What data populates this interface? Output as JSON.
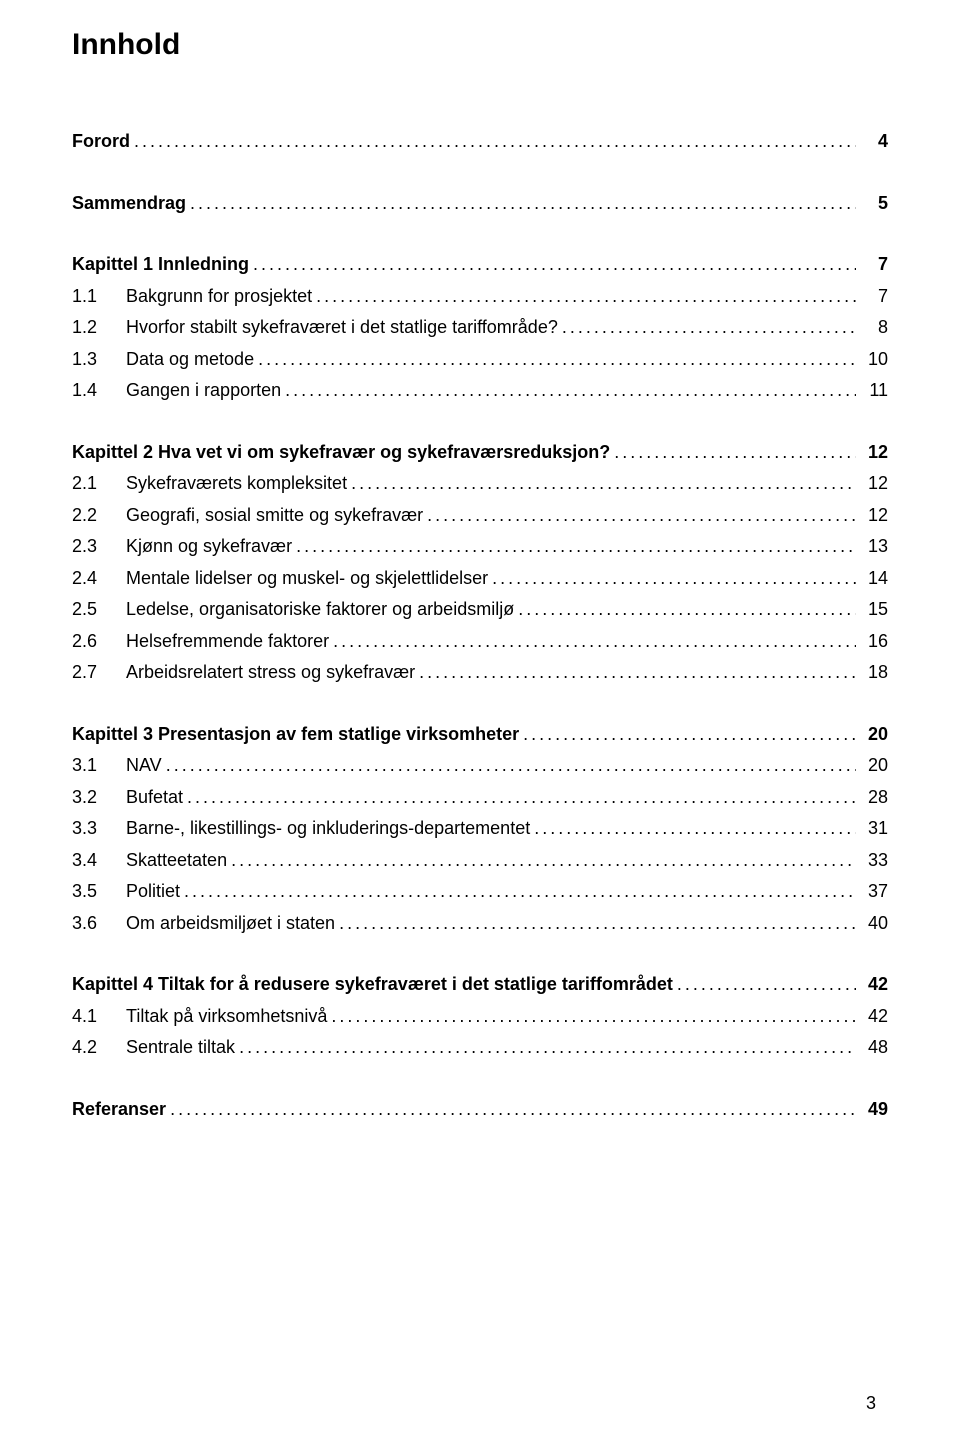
{
  "title": "Innhold",
  "pageNumber": "3",
  "sections": [
    {
      "heading": {
        "label": "Forord",
        "page": "4"
      },
      "items": []
    },
    {
      "heading": {
        "label": "Sammendrag",
        "page": "5"
      },
      "items": []
    },
    {
      "heading": {
        "label": "Kapittel 1 Innledning",
        "page": "7"
      },
      "items": [
        {
          "num": "1.1",
          "label": "Bakgrunn for prosjektet",
          "page": "7"
        },
        {
          "num": "1.2",
          "label": "Hvorfor stabilt sykefraværet  i det statlige tariffområde?",
          "page": "8"
        },
        {
          "num": "1.3",
          "label": "Data og metode",
          "page": "10"
        },
        {
          "num": "1.4",
          "label": "Gangen i rapporten",
          "page": "11"
        }
      ]
    },
    {
      "heading": {
        "label": "Kapittel 2 Hva vet vi om sykefravær  og sykefraværsreduksjon?",
        "page": "12"
      },
      "items": [
        {
          "num": "2.1",
          "label": "Sykefraværets kompleksitet",
          "page": "12"
        },
        {
          "num": "2.2",
          "label": "Geografi, sosial smitte og sykefravær",
          "page": "12"
        },
        {
          "num": "2.3",
          "label": "Kjønn og sykefravær",
          "page": "13"
        },
        {
          "num": "2.4",
          "label": "Mentale lidelser og muskel- og skjelettlidelser",
          "page": "14"
        },
        {
          "num": "2.5",
          "label": "Ledelse, organisatoriske faktorer  og arbeidsmiljø",
          "page": "15"
        },
        {
          "num": "2.6",
          "label": "Helsefremmende faktorer",
          "page": "16"
        },
        {
          "num": "2.7",
          "label": "Arbeidsrelatert stress og sykefravær",
          "page": "18"
        }
      ]
    },
    {
      "heading": {
        "label": "Kapittel 3 Presentasjon av  fem statlige virksomheter",
        "page": "20"
      },
      "items": [
        {
          "num": "3.1",
          "label": "NAV",
          "page": "20"
        },
        {
          "num": "3.2",
          "label": "Bufetat",
          "page": "28"
        },
        {
          "num": "3.3",
          "label": "Barne-, likestillings- og inkluderings-departementet",
          "page": "31"
        },
        {
          "num": "3.4",
          "label": "Skatteetaten",
          "page": "33"
        },
        {
          "num": "3.5",
          "label": "Politiet",
          "page": "37"
        },
        {
          "num": "3.6",
          "label": "Om arbeidsmiljøet i staten",
          "page": "40"
        }
      ]
    },
    {
      "heading": {
        "label": "Kapittel 4 Tiltak for å redusere sykefraværet  i det statlige tariffområdet",
        "page": "42"
      },
      "items": [
        {
          "num": "4.1",
          "label": "Tiltak på virksomhetsnivå",
          "page": "42"
        },
        {
          "num": "4.2",
          "label": "Sentrale tiltak",
          "page": "48"
        }
      ]
    },
    {
      "heading": {
        "label": "Referanser",
        "page": "49"
      },
      "items": []
    }
  ],
  "style": {
    "background": "#ffffff",
    "text_color": "#000000",
    "title_fontsize": 30,
    "line_fontsize": 18,
    "leader_char": "."
  }
}
